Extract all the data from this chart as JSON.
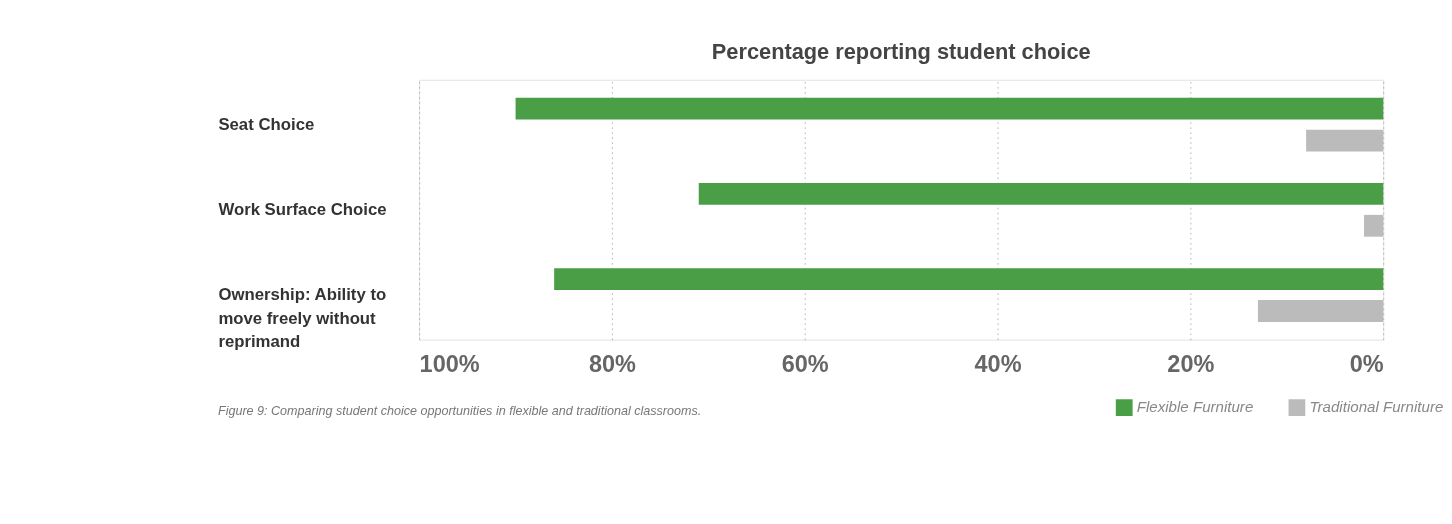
{
  "chart_data": {
    "type": "bar",
    "orientation": "horizontal",
    "title": "Percentage reporting student choice",
    "categories": [
      "Seat Choice",
      "Work Surface Choice",
      "Ownership: Ability to move freely without reprimand"
    ],
    "series": [
      {
        "name": "Flexible Furniture",
        "color": "#4a9e45",
        "values": [
          90,
          71,
          86
        ]
      },
      {
        "name": "Traditional Furniture",
        "color": "#bbbbbb",
        "values": [
          8,
          2,
          13
        ]
      }
    ],
    "xlim": [
      100,
      0
    ],
    "xticks": [
      {
        "value": 100,
        "label": "100%"
      },
      {
        "value": 80,
        "label": "80%"
      },
      {
        "value": 60,
        "label": "60%"
      },
      {
        "value": 40,
        "label": "40%"
      },
      {
        "value": 20,
        "label": "20%"
      },
      {
        "value": 0,
        "label": "0%"
      }
    ],
    "grid": "x",
    "legend": "bottom right",
    "annotations": [
      "Figure 9: Comparing student choice opportunities in flexible and traditional classrooms."
    ]
  }
}
